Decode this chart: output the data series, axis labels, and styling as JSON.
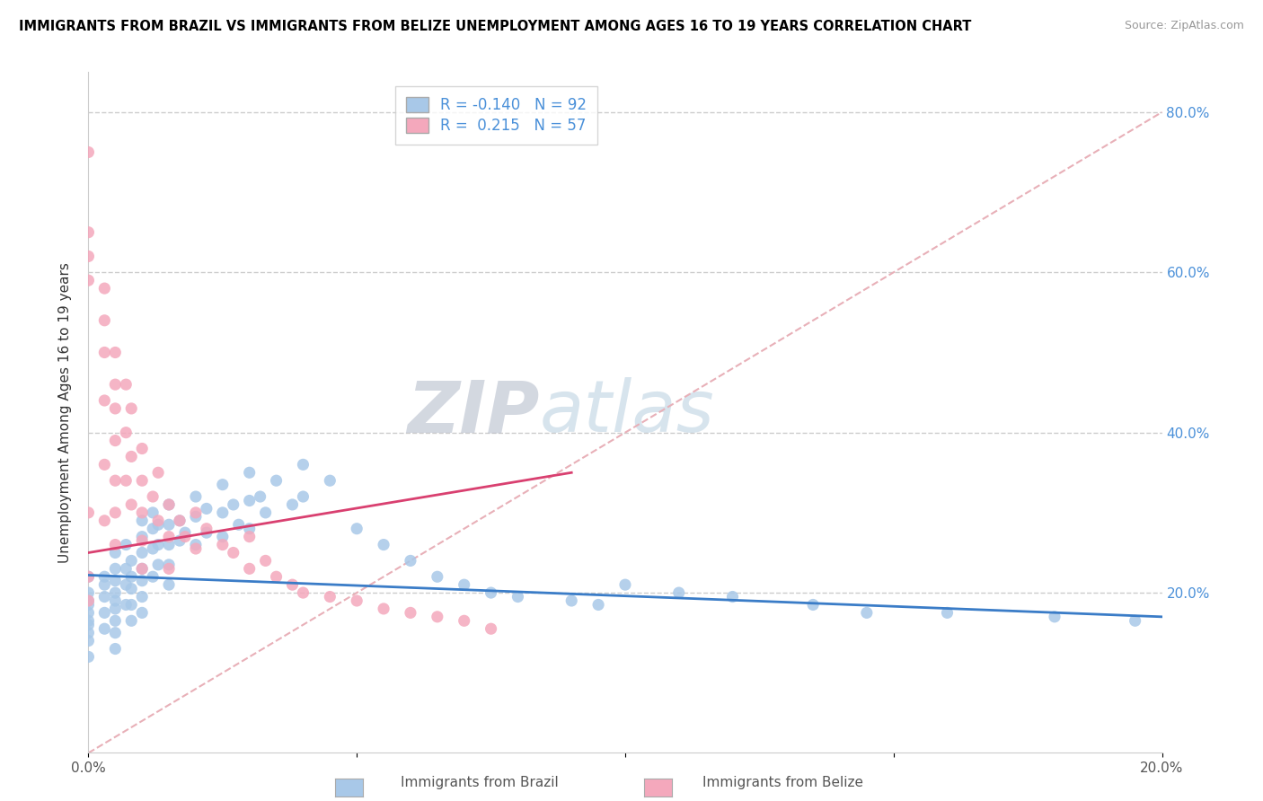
{
  "title": "IMMIGRANTS FROM BRAZIL VS IMMIGRANTS FROM BELIZE UNEMPLOYMENT AMONG AGES 16 TO 19 YEARS CORRELATION CHART",
  "source": "Source: ZipAtlas.com",
  "ylabel": "Unemployment Among Ages 16 to 19 years",
  "xlim": [
    0.0,
    0.2
  ],
  "ylim": [
    0.0,
    0.85
  ],
  "brazil_R": -0.14,
  "brazil_N": 92,
  "belize_R": 0.215,
  "belize_N": 57,
  "brazil_color": "#a8c8e8",
  "belize_color": "#f4a8bc",
  "brazil_line_color": "#3a7cc7",
  "belize_line_color": "#d94070",
  "diag_color": "#e8b0b8",
  "watermark_zip": "ZIP",
  "watermark_atlas": "atlas",
  "brazil_x": [
    0.0,
    0.0,
    0.0,
    0.0,
    0.0,
    0.0,
    0.0,
    0.0,
    0.0,
    0.0,
    0.003,
    0.003,
    0.003,
    0.003,
    0.003,
    0.005,
    0.005,
    0.005,
    0.005,
    0.005,
    0.005,
    0.005,
    0.005,
    0.005,
    0.007,
    0.007,
    0.007,
    0.007,
    0.008,
    0.008,
    0.008,
    0.008,
    0.008,
    0.01,
    0.01,
    0.01,
    0.01,
    0.01,
    0.01,
    0.01,
    0.012,
    0.012,
    0.012,
    0.012,
    0.013,
    0.013,
    0.013,
    0.015,
    0.015,
    0.015,
    0.015,
    0.015,
    0.017,
    0.017,
    0.018,
    0.02,
    0.02,
    0.02,
    0.022,
    0.022,
    0.025,
    0.025,
    0.025,
    0.027,
    0.028,
    0.03,
    0.03,
    0.03,
    0.032,
    0.033,
    0.035,
    0.038,
    0.04,
    0.04,
    0.045,
    0.05,
    0.055,
    0.06,
    0.065,
    0.07,
    0.075,
    0.08,
    0.09,
    0.095,
    0.1,
    0.11,
    0.12,
    0.135,
    0.145,
    0.16,
    0.18,
    0.195
  ],
  "brazil_y": [
    0.22,
    0.2,
    0.19,
    0.185,
    0.175,
    0.165,
    0.16,
    0.15,
    0.14,
    0.12,
    0.22,
    0.21,
    0.195,
    0.175,
    0.155,
    0.25,
    0.23,
    0.215,
    0.2,
    0.19,
    0.18,
    0.165,
    0.15,
    0.13,
    0.26,
    0.23,
    0.21,
    0.185,
    0.24,
    0.22,
    0.205,
    0.185,
    0.165,
    0.29,
    0.27,
    0.25,
    0.23,
    0.215,
    0.195,
    0.175,
    0.3,
    0.28,
    0.255,
    0.22,
    0.285,
    0.26,
    0.235,
    0.31,
    0.285,
    0.26,
    0.235,
    0.21,
    0.29,
    0.265,
    0.275,
    0.32,
    0.295,
    0.26,
    0.305,
    0.275,
    0.335,
    0.3,
    0.27,
    0.31,
    0.285,
    0.35,
    0.315,
    0.28,
    0.32,
    0.3,
    0.34,
    0.31,
    0.36,
    0.32,
    0.34,
    0.28,
    0.26,
    0.24,
    0.22,
    0.21,
    0.2,
    0.195,
    0.19,
    0.185,
    0.21,
    0.2,
    0.195,
    0.185,
    0.175,
    0.175,
    0.17,
    0.165
  ],
  "belize_x": [
    0.0,
    0.0,
    0.0,
    0.0,
    0.0,
    0.0,
    0.0,
    0.003,
    0.003,
    0.003,
    0.003,
    0.003,
    0.003,
    0.005,
    0.005,
    0.005,
    0.005,
    0.005,
    0.005,
    0.005,
    0.007,
    0.007,
    0.007,
    0.008,
    0.008,
    0.008,
    0.01,
    0.01,
    0.01,
    0.01,
    0.01,
    0.012,
    0.013,
    0.013,
    0.015,
    0.015,
    0.015,
    0.017,
    0.018,
    0.02,
    0.02,
    0.022,
    0.025,
    0.027,
    0.03,
    0.03,
    0.033,
    0.035,
    0.038,
    0.04,
    0.045,
    0.05,
    0.055,
    0.06,
    0.065,
    0.07,
    0.075
  ],
  "belize_y": [
    0.75,
    0.65,
    0.62,
    0.59,
    0.3,
    0.22,
    0.19,
    0.58,
    0.54,
    0.5,
    0.44,
    0.36,
    0.29,
    0.5,
    0.46,
    0.43,
    0.39,
    0.34,
    0.3,
    0.26,
    0.46,
    0.4,
    0.34,
    0.43,
    0.37,
    0.31,
    0.38,
    0.34,
    0.3,
    0.265,
    0.23,
    0.32,
    0.35,
    0.29,
    0.31,
    0.27,
    0.23,
    0.29,
    0.27,
    0.3,
    0.255,
    0.28,
    0.26,
    0.25,
    0.27,
    0.23,
    0.24,
    0.22,
    0.21,
    0.2,
    0.195,
    0.19,
    0.18,
    0.175,
    0.17,
    0.165,
    0.155
  ]
}
